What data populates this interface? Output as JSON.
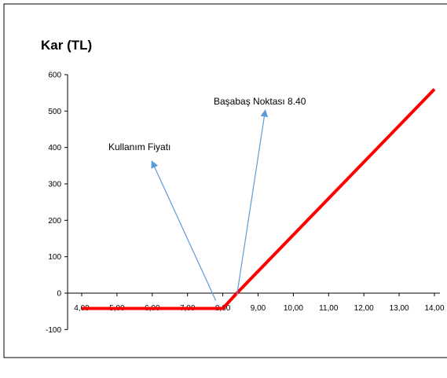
{
  "chart_data": {
    "type": "line",
    "title": "",
    "xlabel": "",
    "ylabel": "Kar (TL)",
    "x_tick_labels": [
      "4,00",
      "5,00",
      "6,00",
      "7,00",
      "8,00",
      "9,00",
      "10,00",
      "11,00",
      "12,00",
      "13,00",
      "14,00"
    ],
    "y_tick_labels": [
      "-100",
      "0",
      "100",
      "200",
      "300",
      "400",
      "500",
      "600"
    ],
    "xlim": [
      3.6,
      14.3
    ],
    "ylim": [
      -100,
      600
    ],
    "grid": false,
    "legend": "none",
    "series": [
      {
        "color": "#ff0000",
        "x": [
          4.0,
          8.0,
          8.4,
          14.0
        ],
        "y": [
          -42,
          -42,
          0,
          560
        ]
      }
    ],
    "annotations": [
      {
        "text": "Kullanım Fiyatı",
        "arrow_from": [
          7.8,
          -20
        ],
        "arrow_to": [
          6.0,
          360
        ]
      },
      {
        "text": "Başabaş Noktası 8.40",
        "arrow_from": [
          8.4,
          -5
        ],
        "arrow_to": [
          9.2,
          500
        ]
      }
    ],
    "colors": {
      "line": "#ff0000",
      "arrow": "#5b9bd5",
      "axis": "#000000"
    }
  }
}
